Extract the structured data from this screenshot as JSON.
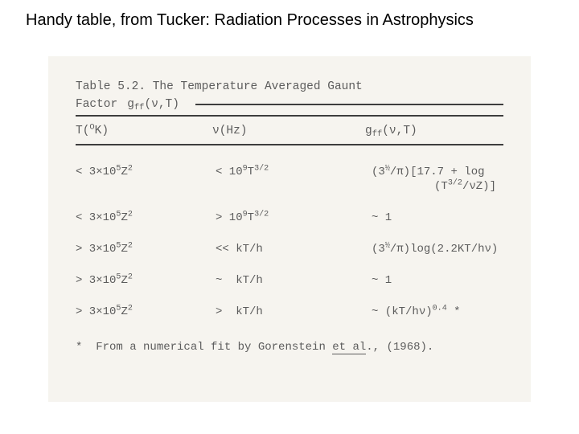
{
  "caption": "Handy table, from Tucker:  Radiation Processes in Astrophysics",
  "scan": {
    "background_color": "#f6f4ef",
    "text_color": "#5c5c5c",
    "rule_color": "#3d3d3d",
    "table_number": "Table 5.2.",
    "table_title": "The Temperature Averaged Gaunt",
    "factor_label_prefix": "Factor",
    "factor_symbol_html": "g<sub>ff</sub>(ν,T)",
    "headers": {
      "col1_html": "T(<sup>O</sup>K)",
      "col2_html": "ν(Hz)",
      "col3_html": "g<sub>ff</sub>(ν,T)"
    },
    "rows": [
      {
        "c1_html": "&lt;&nbsp;3×10<sup>5</sup>Z<sup>2</sup>",
        "c2_html": "&lt;&nbsp;10<sup>9</sup>T<sup>3/2</sup>",
        "c3_html": "<span class='two-line'>(3<sup>½</sup>/π)[17.7 + log<span class='l2'>(T<sup>3/2</sup>/νZ)]</span></span>"
      },
      {
        "c1_html": "&lt;&nbsp;3×10<sup>5</sup>Z<sup>2</sup>",
        "c2_html": "&gt;&nbsp;10<sup>9</sup>T<sup>3/2</sup>",
        "c3_html": "<span class='tilde'>~</span>&nbsp;1"
      },
      {
        "c1_html": "&gt;&nbsp;3×10<sup>5</sup>Z<sup>2</sup>",
        "c2_html": "&lt;&lt;&nbsp;kT/h",
        "c3_html": "(3<sup>½</sup>/π)log(2.2KT/hν)"
      },
      {
        "c1_html": "&gt;&nbsp;3×10<sup>5</sup>Z<sup>2</sup>",
        "c2_html": "<span class='tilde'>~</span>&nbsp;&nbsp;kT/h",
        "c3_html": "<span class='tilde'>~</span>&nbsp;1"
      },
      {
        "c1_html": "&gt;&nbsp;3×10<sup>5</sup>Z<sup>2</sup>",
        "c2_html": "&gt;&nbsp;&nbsp;kT/h",
        "c3_html": "<span class='tilde'>~</span>&nbsp;(kT/hν)<sup>0.4</sup>&nbsp;*"
      }
    ],
    "footnote_html": "*&nbsp;&nbsp;From a numerical fit by Gorenstein <span class='ul'>et al</span>., (1968)."
  }
}
